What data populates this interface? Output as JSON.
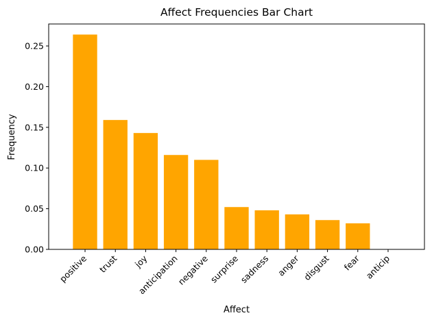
{
  "chart_data": {
    "type": "bar",
    "title": "Affect Frequencies Bar Chart",
    "xlabel": "Affect",
    "ylabel": "Frequency",
    "categories": [
      "positive",
      "trust",
      "joy",
      "anticipation",
      "negative",
      "surprise",
      "sadness",
      "anger",
      "disgust",
      "fear",
      "anticip"
    ],
    "values": [
      0.264,
      0.159,
      0.143,
      0.116,
      0.11,
      0.052,
      0.048,
      0.043,
      0.036,
      0.032,
      0.0
    ],
    "ylim": [
      0,
      0.277
    ],
    "yticks": [
      "0.00",
      "0.05",
      "0.10",
      "0.15",
      "0.20",
      "0.25"
    ],
    "bar_color": "#ffa500",
    "grid": false,
    "legend": "none"
  }
}
